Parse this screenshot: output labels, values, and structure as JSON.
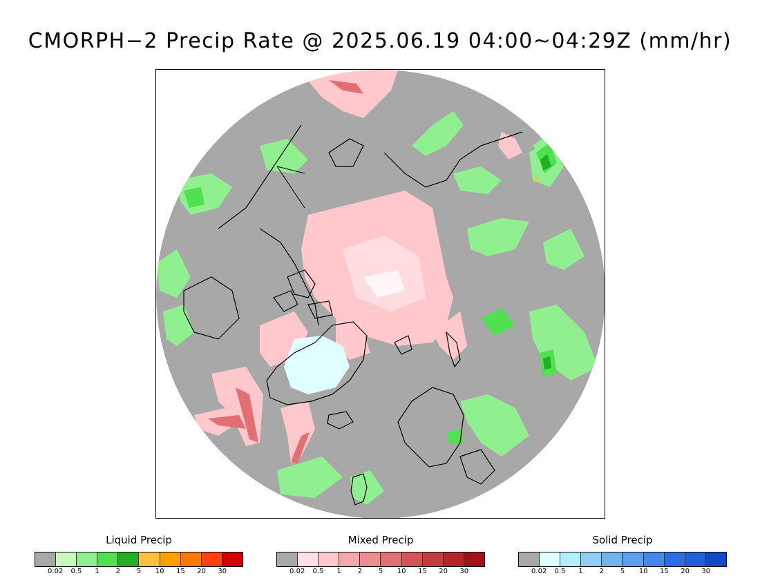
{
  "title": "CMORPH−2 Precip Rate @ 2025.06.19 04:00~04:29Z (mm/hr)",
  "map": {
    "projection": "north-polar-stereographic",
    "ocean_color": "#a8a8a8",
    "coastline_color": "#000000"
  },
  "legends": [
    {
      "title": "Liquid Precip",
      "colors": [
        "#a8a8a8",
        "#c8f8c0",
        "#90f090",
        "#50e050",
        "#20b020",
        "#ffc040",
        "#ffa000",
        "#ff7800",
        "#ff4010",
        "#d00000"
      ],
      "ticks": [
        "0.02",
        "0.5",
        "1",
        "2",
        "5",
        "10",
        "15",
        "20",
        "30"
      ]
    },
    {
      "title": "Mixed Precip",
      "colors": [
        "#a8a8a8",
        "#ffe0e4",
        "#ffc8cc",
        "#f4a8ac",
        "#ec8c90",
        "#e07074",
        "#d45458",
        "#c43c40",
        "#b42428",
        "#a01418"
      ],
      "ticks": [
        "0.02",
        "0.5",
        "1",
        "2",
        "5",
        "10",
        "15",
        "20",
        "30"
      ]
    },
    {
      "title": "Solid Precip",
      "colors": [
        "#a8a8a8",
        "#e0ffff",
        "#b0f0f8",
        "#90ccf4",
        "#70b4f0",
        "#5aa0ec",
        "#4488e8",
        "#2c70e0",
        "#2060d8",
        "#1048c8"
      ],
      "ticks": [
        "0.02",
        "0.5",
        "1",
        "2",
        "5",
        "10",
        "15",
        "20",
        "30"
      ]
    }
  ]
}
